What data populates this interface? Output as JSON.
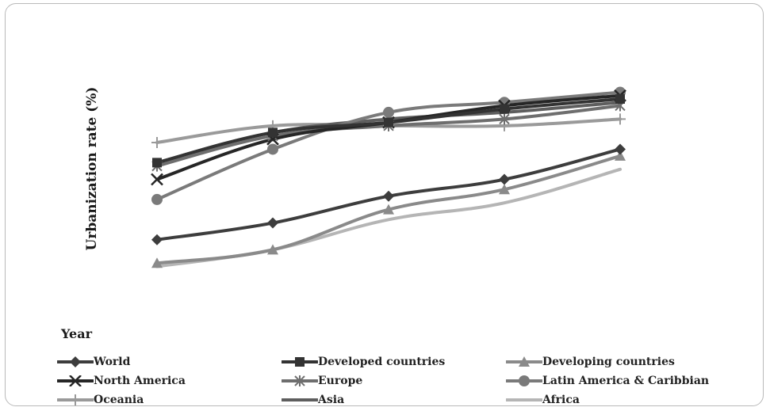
{
  "chart_data": {
    "type": "line",
    "title": "",
    "xlabel": "Year",
    "ylabel": "Urbanization rate (%)",
    "x": [
      0,
      1,
      2,
      3,
      4
    ],
    "ylim": [
      20,
      85
    ],
    "series": [
      {
        "name": "World",
        "color": "#3d3d3d",
        "marker": "diamond",
        "values": [
          30,
          35,
          43,
          48,
          57
        ]
      },
      {
        "name": "Developed countries",
        "color": "#333333",
        "marker": "square",
        "values": [
          53,
          62,
          65,
          69,
          72
        ]
      },
      {
        "name": "Developing countries",
        "color": "#8a8a8a",
        "marker": "triangle",
        "values": [
          23,
          27,
          39,
          45,
          55
        ]
      },
      {
        "name": "North America",
        "color": "#262626",
        "marker": "x",
        "values": [
          48,
          60,
          65,
          70,
          73
        ]
      },
      {
        "name": "Europe",
        "color": "#6e6e6e",
        "marker": "asterisk",
        "values": [
          52,
          61,
          64,
          66,
          70
        ]
      },
      {
        "name": "Latin America & Caribbian",
        "color": "#7a7a7a",
        "marker": "circle",
        "values": [
          42,
          57,
          68,
          71,
          74
        ]
      },
      {
        "name": "Oceania",
        "color": "#9a9a9a",
        "marker": "plus",
        "values": [
          59,
          64,
          64,
          64,
          66
        ]
      },
      {
        "name": "Asia",
        "color": "#5e5e5e",
        "marker": "none",
        "values": [
          53,
          62,
          66,
          68,
          71
        ]
      },
      {
        "name": "Africa",
        "color": "#b5b5b5",
        "marker": "none",
        "values": [
          22,
          27,
          36,
          41,
          51
        ]
      }
    ]
  }
}
